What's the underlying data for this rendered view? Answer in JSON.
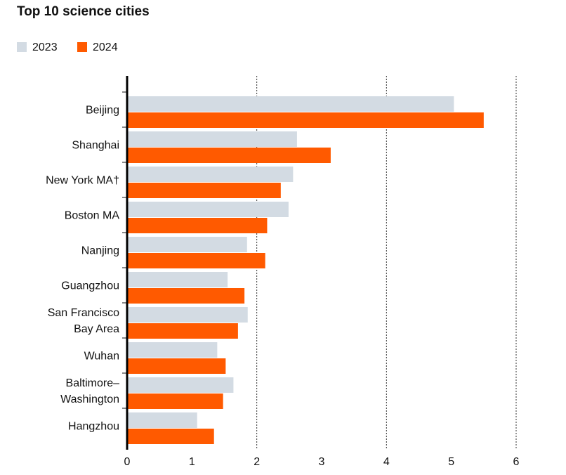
{
  "chart_data": {
    "type": "barh",
    "title": "Top 10 science cities",
    "categories": [
      "Beijing",
      "Shanghai",
      "New York MA†",
      "Boston MA",
      "Nanjing",
      "Guangzhou",
      "San Francisco\nBay Area",
      "Wuhan",
      "Baltimore–\nWashington",
      "Hangzhou"
    ],
    "series": [
      {
        "name": "2023",
        "color": "#d3dbe3",
        "values": [
          5.04,
          2.62,
          2.56,
          2.49,
          1.85,
          1.55,
          1.86,
          1.39,
          1.64,
          1.08
        ]
      },
      {
        "name": "2024",
        "color": "#ff5a00",
        "values": [
          5.5,
          3.14,
          2.37,
          2.16,
          2.13,
          1.81,
          1.71,
          1.52,
          1.48,
          1.34
        ]
      }
    ],
    "xlim": [
      0,
      6
    ],
    "xticks": [
      0,
      1,
      2,
      3,
      4,
      5,
      6
    ],
    "grid": true
  }
}
